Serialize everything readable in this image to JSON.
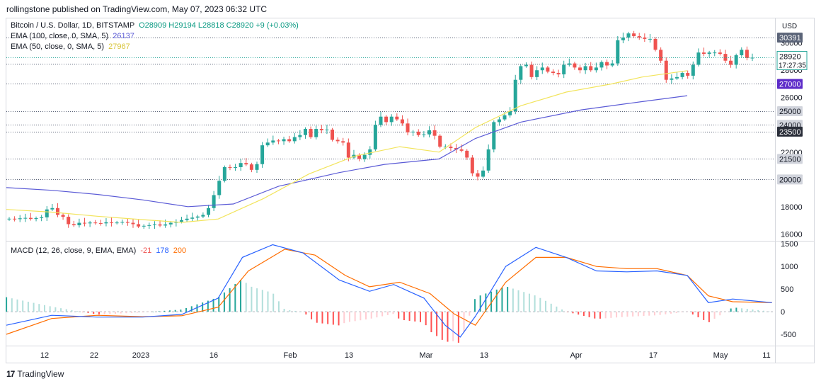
{
  "header": {
    "published": "rollingstone published on TradingView.com, May 07, 2023 06:32 UTC"
  },
  "legend": {
    "symbol": "Bitcoin / U.S. Dollar, 1D, BITSTAMP",
    "ohlc": "O28909 H29194 L28818 C28920 +9 (+0.03%)",
    "ema100_label": "EMA (100, close, 0, SMA, 5)",
    "ema100_value": "26137",
    "ema50_label": "EMA (50, close, 0, SMA, 5)",
    "ema50_value": "27967",
    "macd_label": "MACD (12, 26, close, 9, EMA, EMA)",
    "macd_hist": "-21",
    "macd_line": "178",
    "macd_signal": "200"
  },
  "colors": {
    "up": "#26a69a",
    "down": "#ef5350",
    "ema100": "#5b5bd6",
    "ema50": "#f2e45c",
    "macd": "#2962ff",
    "signal": "#ff6d00",
    "level": "#2a2e39"
  },
  "price_axis": {
    "currency": "USD",
    "ticks": [
      "16000",
      "18000",
      "20000",
      "22000",
      "24000",
      "26000",
      "28000",
      "30000"
    ],
    "levels": [
      "30391",
      "28500",
      "27000",
      "25000",
      "24000",
      "23500",
      "21500",
      "20000"
    ],
    "current_price": "28920",
    "countdown": "17:27:35"
  },
  "macd_axis": {
    "ticks": [
      "-500",
      "0",
      "500",
      "1000",
      "1500"
    ]
  },
  "time_axis": {
    "labels": [
      "12",
      "22",
      "2023",
      "16",
      "Feb",
      "13",
      "Mar",
      "13",
      "Apr",
      "17",
      "May",
      "11"
    ]
  },
  "footer": {
    "brand": "TradingView"
  },
  "chart_data": {
    "type": "candlestick",
    "title": "Bitcoin / U.S. Dollar, 1D, BITSTAMP",
    "x_range": [
      "2022-12-05",
      "2023-05-11"
    ],
    "ylim": [
      15500,
      31800
    ],
    "ohlc_approx_close": [
      17120,
      17090,
      17150,
      17180,
      17100,
      17160,
      17220,
      17800,
      17900,
      17400,
      17260,
      16720,
      16640,
      16820,
      16780,
      16840,
      16800,
      16780,
      16860,
      16820,
      16840,
      16880,
      16820,
      16720,
      16550,
      16600,
      16650,
      16700,
      16620,
      16700,
      16820,
      16900,
      17020,
      17120,
      17200,
      17280,
      17400,
      17900,
      18850,
      19900,
      20900,
      20850,
      20900,
      21200,
      21100,
      20700,
      21120,
      22500,
      22700,
      22850,
      22800,
      22950,
      22800,
      23100,
      23250,
      23700,
      23100,
      23700,
      23600,
      23650,
      22900,
      22800,
      22700,
      21600,
      21800,
      21500,
      21800,
      22200,
      24000,
      24600,
      24200,
      24600,
      24400,
      24100,
      23450,
      23500,
      23250,
      23300,
      23600,
      23200,
      22400,
      22400,
      22300,
      22200,
      22100,
      21600,
      20450,
      20200,
      20650,
      22200,
      24200,
      24400,
      24700,
      25000,
      27300,
      28300,
      28400,
      27500,
      28000,
      28200,
      27900,
      27800,
      27700,
      28400,
      28500,
      28200,
      28000,
      28300,
      28000,
      28200,
      28600,
      28350,
      28500,
      30200,
      30400,
      30700,
      30500,
      30400,
      30300,
      30300,
      29500,
      28700,
      27300,
      27400,
      27500,
      27800,
      27600,
      28400,
      29300,
      29200,
      29300,
      29300,
      29200,
      28700,
      28400,
      29100,
      29500,
      28900,
      28920
    ],
    "series": [
      {
        "name": "EMA (100, close, 0, SMA, 5)",
        "last": 26137,
        "points": [
          [
            0,
            19400
          ],
          [
            15,
            19200
          ],
          [
            30,
            18900
          ],
          [
            45,
            18500
          ],
          [
            60,
            18000
          ],
          [
            75,
            18200
          ],
          [
            90,
            19500
          ],
          [
            110,
            20500
          ],
          [
            125,
            21100
          ],
          [
            143,
            21500
          ],
          [
            155,
            23000
          ],
          [
            170,
            24200
          ],
          [
            190,
            25100
          ],
          [
            210,
            25700
          ],
          [
            225,
            26137
          ]
        ]
      },
      {
        "name": "EMA (50, close, 0, SMA, 5)",
        "last": 27967,
        "points": [
          [
            0,
            17800
          ],
          [
            15,
            17600
          ],
          [
            30,
            17300
          ],
          [
            45,
            17050
          ],
          [
            58,
            16850
          ],
          [
            70,
            17100
          ],
          [
            85,
            18600
          ],
          [
            100,
            20400
          ],
          [
            115,
            21700
          ],
          [
            130,
            22400
          ],
          [
            143,
            22000
          ],
          [
            155,
            23800
          ],
          [
            170,
            25400
          ],
          [
            185,
            26400
          ],
          [
            200,
            27000
          ],
          [
            210,
            27500
          ],
          [
            225,
            27967
          ]
        ]
      }
    ],
    "macd": {
      "name": "MACD (12, 26, close, 9, EMA, EMA)",
      "histogram": -21,
      "macd": 178,
      "signal": 200,
      "ylim": [
        -750,
        1550
      ],
      "macd_points": [
        [
          0,
          -300
        ],
        [
          15,
          -80
        ],
        [
          30,
          -120
        ],
        [
          45,
          -120
        ],
        [
          58,
          -60
        ],
        [
          70,
          300
        ],
        [
          78,
          1200
        ],
        [
          88,
          1480
        ],
        [
          98,
          1300
        ],
        [
          110,
          700
        ],
        [
          120,
          450
        ],
        [
          128,
          600
        ],
        [
          138,
          300
        ],
        [
          145,
          -300
        ],
        [
          150,
          -560
        ],
        [
          155,
          -100
        ],
        [
          165,
          1000
        ],
        [
          175,
          1420
        ],
        [
          185,
          1200
        ],
        [
          195,
          900
        ],
        [
          205,
          880
        ],
        [
          215,
          900
        ],
        [
          225,
          800
        ],
        [
          232,
          200
        ],
        [
          240,
          280
        ],
        [
          245,
          250
        ],
        [
          253,
          200
        ]
      ],
      "signal_points": [
        [
          0,
          -500
        ],
        [
          15,
          -150
        ],
        [
          30,
          -80
        ],
        [
          45,
          -110
        ],
        [
          58,
          -90
        ],
        [
          70,
          100
        ],
        [
          80,
          900
        ],
        [
          92,
          1380
        ],
        [
          102,
          1250
        ],
        [
          112,
          800
        ],
        [
          120,
          550
        ],
        [
          130,
          650
        ],
        [
          140,
          400
        ],
        [
          148,
          -50
        ],
        [
          155,
          -300
        ],
        [
          165,
          650
        ],
        [
          175,
          1200
        ],
        [
          185,
          1200
        ],
        [
          195,
          1000
        ],
        [
          205,
          950
        ],
        [
          215,
          950
        ],
        [
          225,
          800
        ],
        [
          232,
          350
        ],
        [
          240,
          220
        ],
        [
          253,
          200
        ]
      ]
    }
  }
}
